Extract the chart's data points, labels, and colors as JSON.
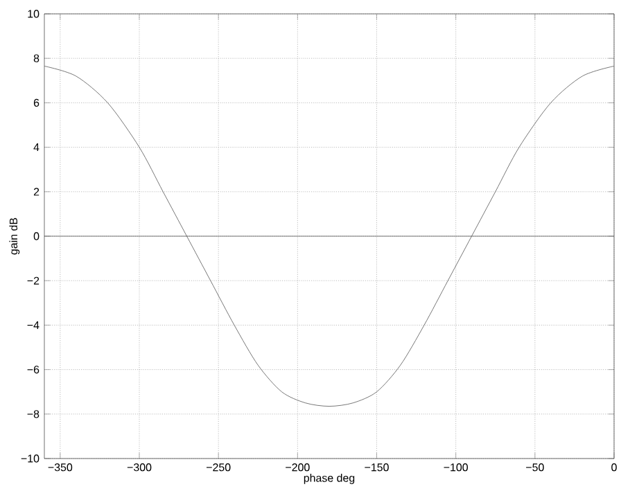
{
  "chart_data": {
    "type": "line",
    "xlabel": "phase deg",
    "ylabel": "gain dB",
    "series": [
      {
        "color": "#555555",
        "x": [
          -360,
          -340,
          -320,
          -300,
          -285,
          -270,
          -255,
          -240,
          -225,
          -210,
          -195,
          -180,
          -165,
          -150,
          -135,
          -120,
          -105,
          -90,
          -75,
          -60,
          -40,
          -20,
          0
        ],
        "values": [
          7.65,
          7.2,
          6,
          4,
          2,
          0,
          -2,
          -4,
          -5.8,
          -7,
          -7.5,
          -7.65,
          -7.5,
          -7,
          -5.8,
          -4,
          -2,
          0,
          2,
          4,
          6,
          7.2,
          7.65
        ]
      }
    ],
    "ref_lines": [
      {
        "axis": "y",
        "value": 0,
        "color": "#555555"
      }
    ],
    "xlim": [
      -360,
      0
    ],
    "ylim": [
      -10,
      10
    ],
    "xticks": [
      {
        "value": -350,
        "label": "−350"
      },
      {
        "value": -300,
        "label": "−300"
      },
      {
        "value": -250,
        "label": "−250"
      },
      {
        "value": -200,
        "label": "−200"
      },
      {
        "value": -150,
        "label": "−150"
      },
      {
        "value": -100,
        "label": "−100"
      },
      {
        "value": -50,
        "label": "−50"
      },
      0
    ],
    "yticks": [
      {
        "value": -10,
        "label": "−10"
      },
      {
        "value": -8,
        "label": "−8"
      },
      {
        "value": -6,
        "label": "−6"
      },
      {
        "value": -4,
        "label": "−4"
      },
      {
        "value": -2,
        "label": "−2"
      },
      0,
      2,
      4,
      6,
      8,
      10
    ],
    "grid": true,
    "line_style": "solid",
    "marker": "none"
  }
}
